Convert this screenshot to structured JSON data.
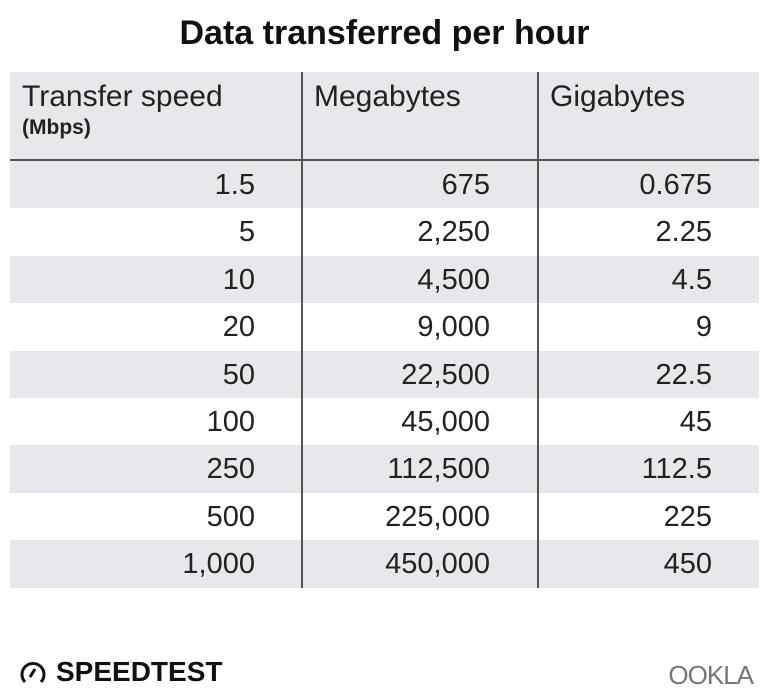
{
  "chart_data": {
    "type": "table",
    "title": "Data transferred per hour",
    "columns": [
      {
        "label": "Transfer speed",
        "unit": "(Mbps)"
      },
      {
        "label": "Megabytes"
      },
      {
        "label": "Gigabytes"
      }
    ],
    "rows": [
      [
        "1.5",
        "675",
        "0.675"
      ],
      [
        "5",
        "2,250",
        "2.25"
      ],
      [
        "10",
        "4,500",
        "4.5"
      ],
      [
        "20",
        "9,000",
        "9"
      ],
      [
        "50",
        "22,500",
        "22.5"
      ],
      [
        "100",
        "45,000",
        "45"
      ],
      [
        "250",
        "112,500",
        "112.5"
      ],
      [
        "500",
        "225,000",
        "225"
      ],
      [
        "1,000",
        "450,000",
        "450"
      ]
    ],
    "colors": {
      "stripe": "#e8e8ec",
      "rule": "#555555"
    }
  },
  "footer": {
    "brand_left": "SPEEDTEST",
    "brand_left_icon": "speedometer-icon",
    "brand_right": "OOKLA"
  }
}
